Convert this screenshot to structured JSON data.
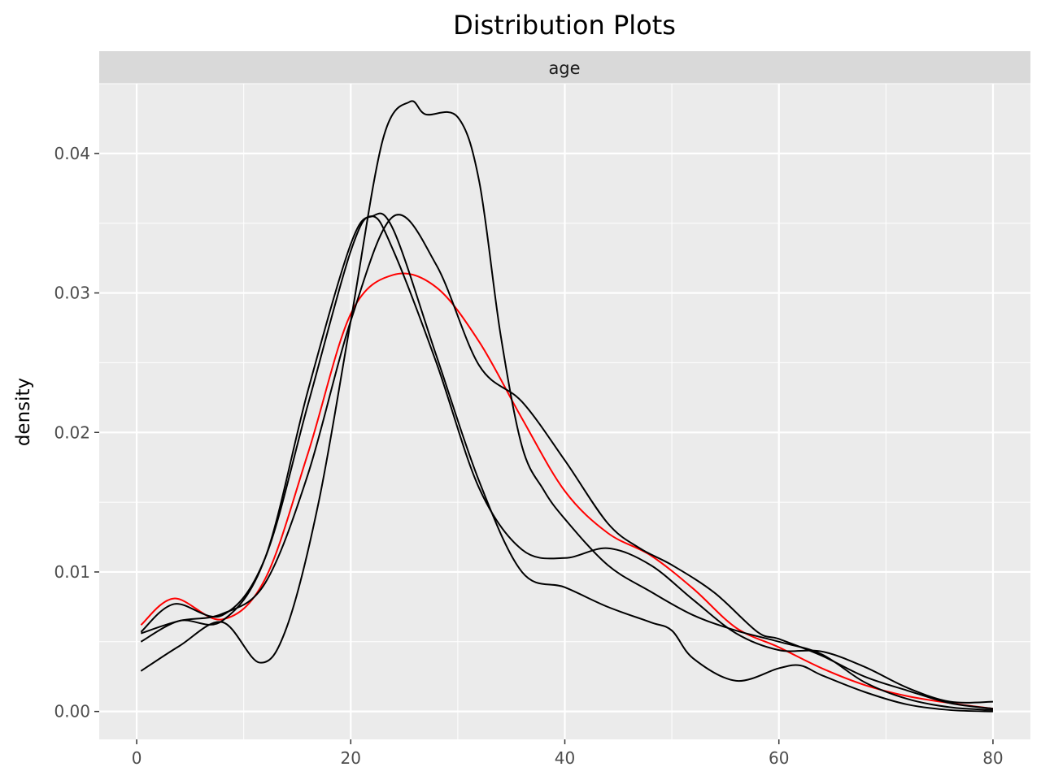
{
  "chart_data": {
    "type": "line",
    "title": "Distribution Plots",
    "facet_label": "age",
    "xlabel": "",
    "ylabel": "density",
    "xlim": [
      -3.5,
      83.5
    ],
    "ylim": [
      -0.002,
      0.045
    ],
    "x_ticks": [
      0,
      20,
      40,
      60,
      80
    ],
    "x_tick_labels": [
      "0",
      "20",
      "40",
      "60",
      "80"
    ],
    "y_ticks": [
      0.0,
      0.01,
      0.02,
      0.03,
      0.04
    ],
    "y_tick_labels": [
      "0.00",
      "0.01",
      "0.02",
      "0.03",
      "0.04"
    ],
    "grid": true,
    "legend": "none",
    "colors": {
      "panel_bg": "#ebebeb",
      "strip_bg": "#d9d9d9",
      "grid": "#ffffff"
    },
    "series": [
      {
        "color": "#ff0000",
        "x": [
          0.4,
          3.5,
          8,
          12,
          16,
          20,
          24,
          28,
          32,
          36,
          40,
          44,
          48,
          52,
          56,
          60,
          64,
          68,
          72,
          76,
          80
        ],
        "y": [
          0.0062,
          0.0081,
          0.0066,
          0.0095,
          0.0185,
          0.0285,
          0.0313,
          0.0304,
          0.0265,
          0.021,
          0.0158,
          0.0128,
          0.0112,
          0.0088,
          0.006,
          0.0046,
          0.0031,
          0.0019,
          0.0011,
          0.0006,
          0.0002
        ]
      },
      {
        "color": "#000000",
        "x": [
          0.4,
          4,
          8,
          11.5,
          14,
          17,
          20,
          23,
          25.5,
          27,
          30,
          32,
          34,
          36,
          38,
          40,
          44,
          48,
          52,
          56,
          60,
          64,
          68,
          72,
          76,
          80
        ],
        "y": [
          0.0029,
          0.0047,
          0.0064,
          0.0035,
          0.006,
          0.015,
          0.028,
          0.041,
          0.0437,
          0.0428,
          0.0426,
          0.038,
          0.027,
          0.019,
          0.0159,
          0.0138,
          0.0105,
          0.0086,
          0.0069,
          0.0058,
          0.005,
          0.0041,
          0.0021,
          0.0009,
          0.0003,
          0.0001
        ]
      },
      {
        "color": "#000000",
        "x": [
          0.4,
          3.5,
          8,
          12,
          16,
          20,
          22,
          24,
          28,
          32,
          36,
          40,
          44,
          48,
          52,
          56,
          60,
          64,
          68,
          72,
          76,
          80
        ],
        "y": [
          0.0057,
          0.0077,
          0.0069,
          0.011,
          0.022,
          0.033,
          0.0355,
          0.033,
          0.025,
          0.016,
          0.0116,
          0.011,
          0.0117,
          0.0105,
          0.008,
          0.0056,
          0.0044,
          0.0043,
          0.0032,
          0.0017,
          0.0007,
          0.0007
        ]
      },
      {
        "color": "#000000",
        "x": [
          0.4,
          4,
          8,
          12,
          16,
          20,
          24,
          28,
          32,
          36,
          40,
          44,
          47,
          50,
          54,
          58,
          60,
          64,
          68,
          72,
          76,
          80
        ],
        "y": [
          0.0056,
          0.0065,
          0.007,
          0.0092,
          0.017,
          0.028,
          0.0355,
          0.032,
          0.0248,
          0.0222,
          0.018,
          0.0135,
          0.0117,
          0.0105,
          0.0085,
          0.0057,
          0.0052,
          0.004,
          0.0025,
          0.0015,
          0.0006,
          0.0002
        ]
      },
      {
        "color": "#000000",
        "x": [
          0.4,
          4,
          8,
          12,
          16,
          20,
          22,
          24,
          28,
          32,
          36,
          40,
          44,
          48,
          50,
          52,
          56,
          60,
          62,
          64,
          68,
          72,
          76,
          80
        ],
        "y": [
          0.005,
          0.0065,
          0.0065,
          0.011,
          0.023,
          0.0335,
          0.0355,
          0.0345,
          0.0255,
          0.0165,
          0.01,
          0.0089,
          0.0075,
          0.0064,
          0.0058,
          0.0038,
          0.0022,
          0.0031,
          0.0033,
          0.0026,
          0.0014,
          0.0005,
          0.0001,
          0.0
        ]
      }
    ]
  }
}
